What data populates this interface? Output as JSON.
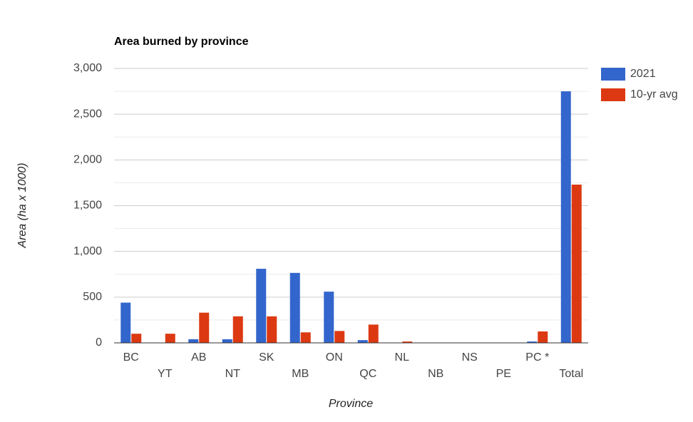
{
  "chart_data": {
    "type": "bar",
    "title": "Area burned by province",
    "x_label": "Province",
    "y_label": "Area (ha x 1000)",
    "categories": [
      "BC",
      "YT",
      "AB",
      "NT",
      "SK",
      "MB",
      "ON",
      "QC",
      "NL",
      "NB",
      "NS",
      "PE",
      "PC *",
      "Total"
    ],
    "series": [
      {
        "name": "2021",
        "color": "#3366cc",
        "values": [
          440,
          3,
          40,
          40,
          810,
          765,
          560,
          30,
          1,
          2,
          1,
          0,
          15,
          2750
        ]
      },
      {
        "name": "10-yr avg",
        "color": "#dc3912",
        "values": [
          100,
          100,
          330,
          290,
          290,
          115,
          130,
          200,
          15,
          3,
          3,
          1,
          125,
          1730
        ]
      }
    ],
    "ylim": [
      0,
      3000
    ],
    "yticks": [
      0,
      {
        "value": 500,
        "label": "500"
      },
      {
        "value": 1000,
        "label": "1,000"
      },
      {
        "value": 1500,
        "label": "1,500"
      },
      {
        "value": 2000,
        "label": "2,000"
      },
      {
        "value": 2500,
        "label": "2,500"
      },
      {
        "value": 3000,
        "label": "3,000"
      }
    ],
    "minor_yticks": [
      250,
      750,
      1250,
      1750,
      2250,
      2750
    ],
    "grid": true,
    "legend": "right"
  }
}
